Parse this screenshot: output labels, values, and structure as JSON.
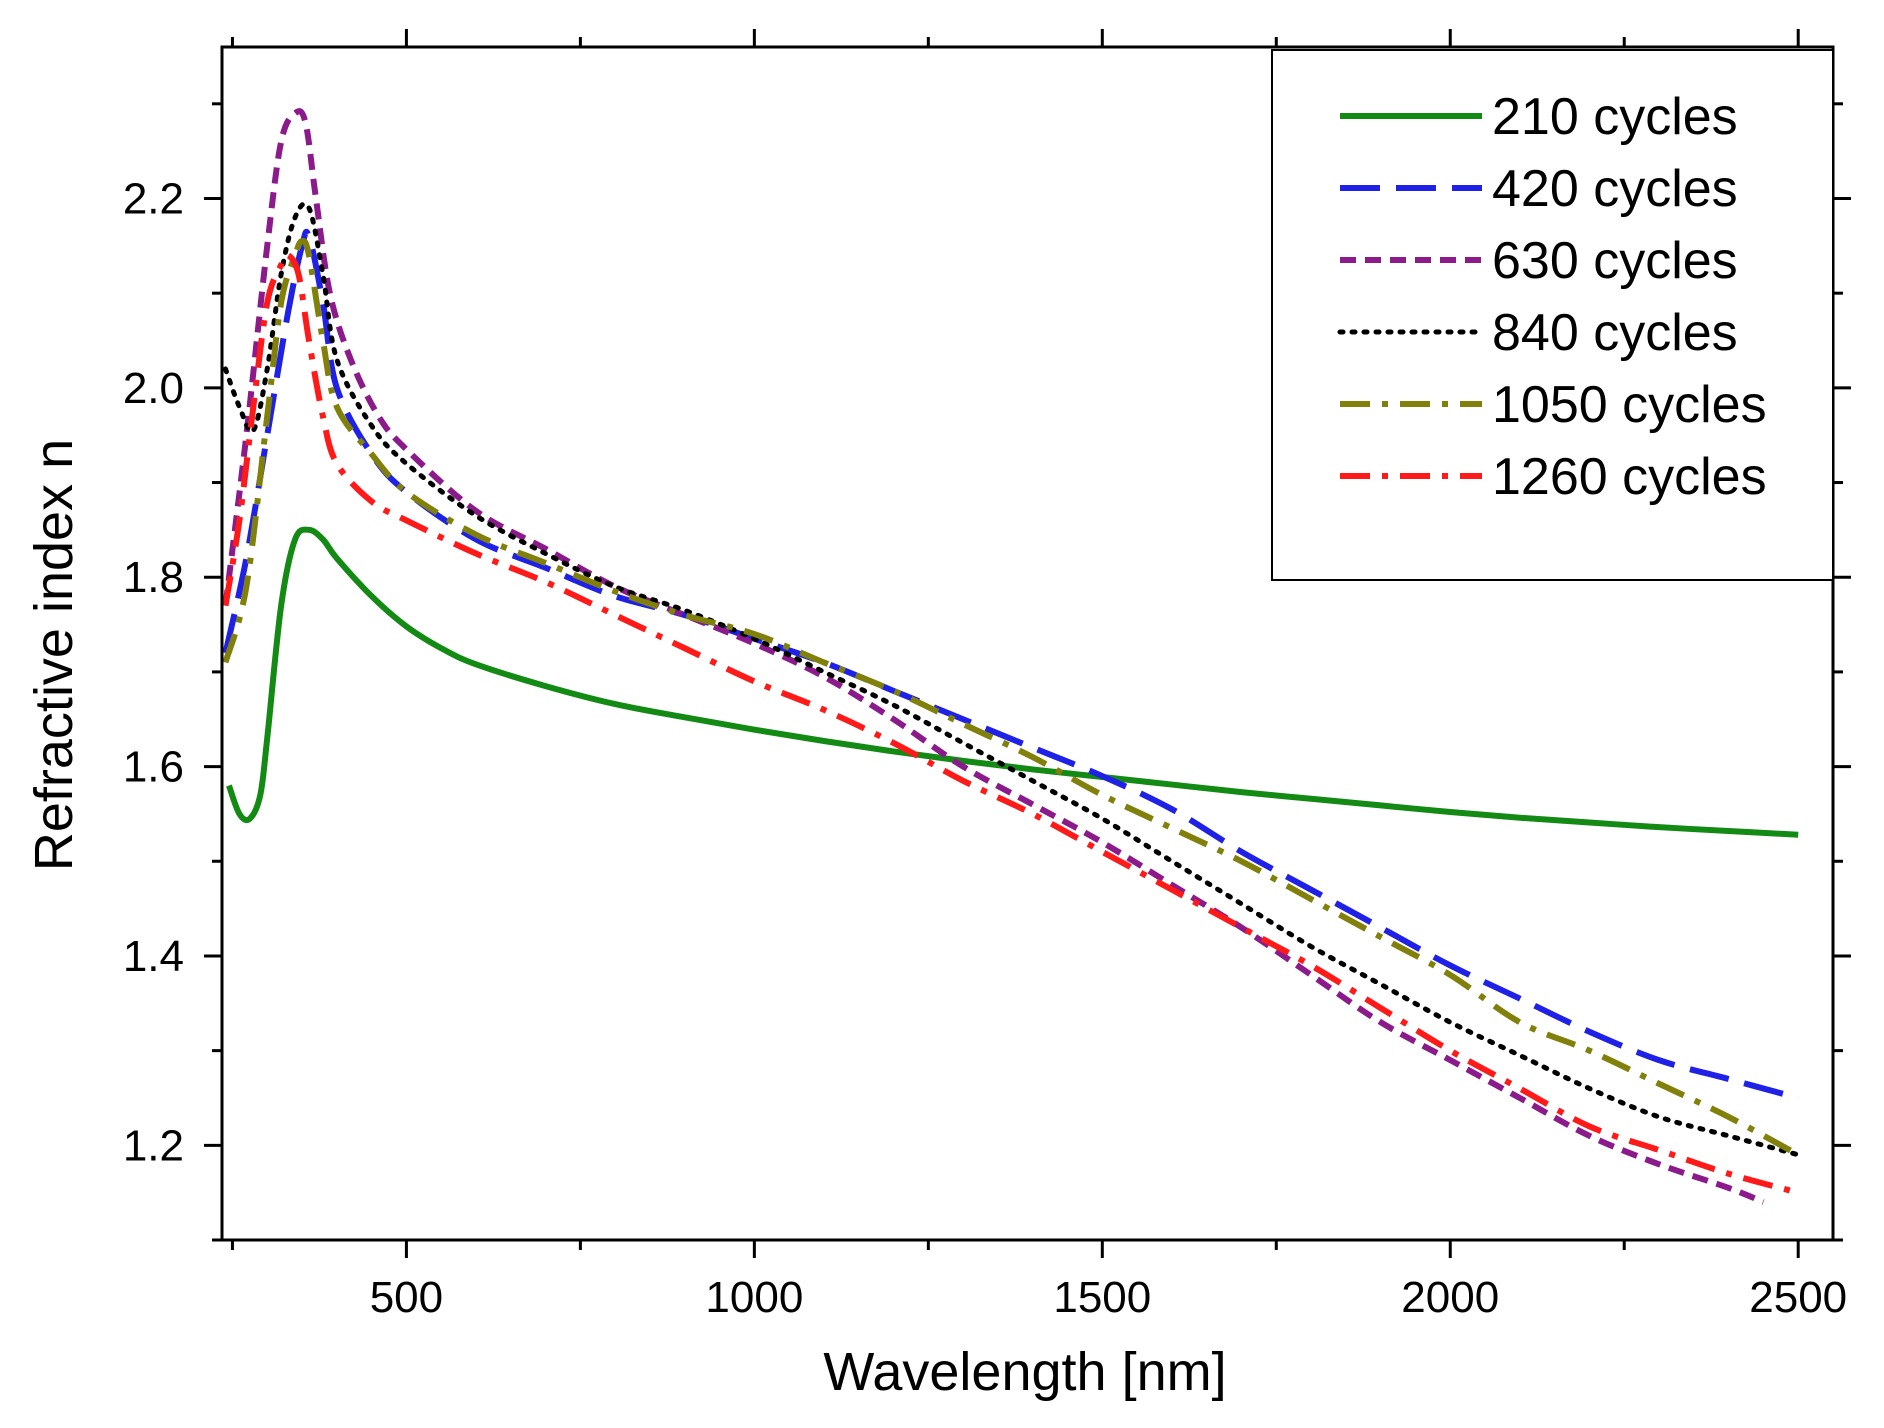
{
  "chart_data": {
    "type": "line",
    "title": "",
    "xlabel": "Wavelength [nm]",
    "ylabel": "Refractive index n",
    "xlim": [
      235,
      2550
    ],
    "ylim": [
      1.1,
      2.36
    ],
    "xticks": [
      500,
      1000,
      1500,
      2000,
      2500
    ],
    "xtick_labels": [
      "500",
      "1000",
      "1500",
      "2000",
      "2500"
    ],
    "yticks": [
      1.2,
      1.4,
      1.6,
      1.8,
      2.0,
      2.2
    ],
    "ytick_labels": [
      "1.2",
      "1.4",
      "1.6",
      "1.8",
      "2.0",
      "2.2"
    ],
    "legend_position": "top-right",
    "series": [
      {
        "name": "210 cycles",
        "color": "#138a13",
        "style": "solid",
        "x": [
          245,
          260,
          275,
          290,
          300,
          320,
          340,
          360,
          380,
          400,
          450,
          500,
          550,
          600,
          700,
          800,
          900,
          1000,
          1100,
          1200,
          1300,
          1400,
          1500,
          1600,
          1700,
          1800,
          1900,
          2000,
          2100,
          2200,
          2300,
          2400,
          2500
        ],
        "values": [
          1.58,
          1.55,
          1.545,
          1.57,
          1.63,
          1.77,
          1.84,
          1.85,
          1.84,
          1.82,
          1.78,
          1.748,
          1.725,
          1.708,
          1.685,
          1.666,
          1.652,
          1.639,
          1.627,
          1.616,
          1.606,
          1.597,
          1.589,
          1.581,
          1.573,
          1.566,
          1.559,
          1.552,
          1.546,
          1.541,
          1.536,
          1.532,
          1.528
        ]
      },
      {
        "name": "420 cycles",
        "color": "#1f22e6",
        "style": "dash",
        "x": [
          240,
          270,
          300,
          330,
          350,
          360,
          380,
          400,
          450,
          500,
          600,
          700,
          800,
          900,
          1000,
          1100,
          1200,
          1300,
          1400,
          1500,
          1600,
          1700,
          1800,
          1900,
          2000,
          2100,
          2200,
          2300,
          2400,
          2500
        ],
        "values": [
          1.72,
          1.82,
          1.95,
          2.08,
          2.15,
          2.16,
          2.09,
          2.0,
          1.93,
          1.89,
          1.84,
          1.81,
          1.78,
          1.76,
          1.735,
          1.71,
          1.68,
          1.65,
          1.62,
          1.59,
          1.555,
          1.51,
          1.47,
          1.43,
          1.39,
          1.355,
          1.32,
          1.29,
          1.27,
          1.25
        ]
      },
      {
        "name": "630 cycles",
        "color": "#8b1a8b",
        "style": "shortdash",
        "x": [
          240,
          270,
          300,
          320,
          340,
          355,
          370,
          390,
          420,
          460,
          500,
          600,
          700,
          800,
          900,
          1000,
          1100,
          1200,
          1300,
          1400,
          1500,
          1600,
          1700,
          1800,
          1900,
          2000,
          2100,
          2200,
          2300,
          2400,
          2450
        ],
        "values": [
          1.77,
          1.95,
          2.15,
          2.26,
          2.29,
          2.28,
          2.2,
          2.1,
          2.03,
          1.97,
          1.935,
          1.87,
          1.83,
          1.79,
          1.76,
          1.73,
          1.695,
          1.65,
          1.6,
          1.56,
          1.52,
          1.475,
          1.43,
          1.38,
          1.33,
          1.29,
          1.25,
          1.21,
          1.18,
          1.155,
          1.14
        ]
      },
      {
        "name": "840 cycles",
        "color": "#000000",
        "style": "dot",
        "x": [
          240,
          260,
          280,
          300,
          320,
          340,
          360,
          380,
          400,
          450,
          500,
          600,
          700,
          800,
          900,
          1000,
          1100,
          1200,
          1300,
          1400,
          1500,
          1600,
          1700,
          1800,
          1900,
          2000,
          2100,
          2200,
          2300,
          2400,
          2500
        ],
        "values": [
          2.02,
          1.98,
          1.955,
          2.02,
          2.12,
          2.18,
          2.19,
          2.12,
          2.03,
          1.96,
          1.92,
          1.865,
          1.825,
          1.79,
          1.765,
          1.735,
          1.7,
          1.665,
          1.625,
          1.585,
          1.545,
          1.5,
          1.455,
          1.41,
          1.37,
          1.33,
          1.295,
          1.26,
          1.23,
          1.21,
          1.19
        ]
      },
      {
        "name": "1050 cycles",
        "color": "#80800a",
        "style": "dashdot",
        "x": [
          240,
          270,
          300,
          320,
          340,
          350,
          360,
          380,
          400,
          450,
          500,
          600,
          700,
          800,
          900,
          1000,
          1100,
          1200,
          1300,
          1400,
          1500,
          1600,
          1700,
          1800,
          1900,
          2000,
          2100,
          2200,
          2300,
          2400,
          2500
        ],
        "values": [
          1.71,
          1.79,
          1.97,
          2.09,
          2.14,
          2.155,
          2.14,
          2.05,
          1.98,
          1.93,
          1.89,
          1.845,
          1.815,
          1.785,
          1.76,
          1.74,
          1.71,
          1.68,
          1.645,
          1.61,
          1.57,
          1.535,
          1.5,
          1.46,
          1.42,
          1.38,
          1.33,
          1.3,
          1.265,
          1.23,
          1.19
        ]
      },
      {
        "name": "1260 cycles",
        "color": "#ff1a1a",
        "style": "dashdot",
        "x": [
          240,
          260,
          280,
          300,
          320,
          330,
          345,
          360,
          380,
          400,
          450,
          500,
          600,
          700,
          800,
          900,
          1000,
          1100,
          1200,
          1300,
          1400,
          1500,
          1600,
          1700,
          1800,
          1900,
          2000,
          2100,
          2200,
          2300,
          2400,
          2500
        ],
        "values": [
          1.77,
          1.86,
          1.98,
          2.09,
          2.13,
          2.14,
          2.12,
          2.05,
          1.97,
          1.92,
          1.88,
          1.86,
          1.825,
          1.795,
          1.76,
          1.725,
          1.69,
          1.66,
          1.625,
          1.585,
          1.55,
          1.51,
          1.47,
          1.43,
          1.39,
          1.345,
          1.3,
          1.26,
          1.22,
          1.195,
          1.17,
          1.15
        ]
      }
    ]
  }
}
